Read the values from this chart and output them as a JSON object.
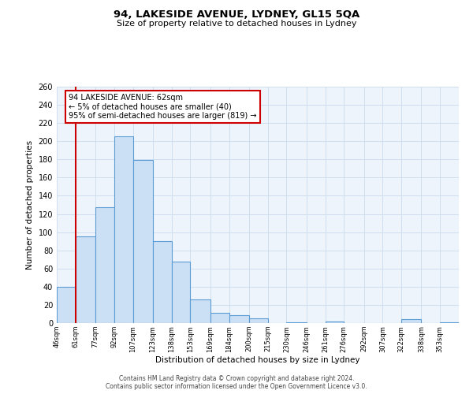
{
  "title": "94, LAKESIDE AVENUE, LYDNEY, GL15 5QA",
  "subtitle": "Size of property relative to detached houses in Lydney",
  "xlabel": "Distribution of detached houses by size in Lydney",
  "ylabel": "Number of detached properties",
  "bin_labels": [
    "46sqm",
    "61sqm",
    "77sqm",
    "92sqm",
    "107sqm",
    "123sqm",
    "138sqm",
    "153sqm",
    "169sqm",
    "184sqm",
    "200sqm",
    "215sqm",
    "230sqm",
    "246sqm",
    "261sqm",
    "276sqm",
    "292sqm",
    "307sqm",
    "322sqm",
    "338sqm",
    "353sqm"
  ],
  "bin_edges": [
    46,
    61,
    77,
    92,
    107,
    123,
    138,
    153,
    169,
    184,
    200,
    215,
    230,
    246,
    261,
    276,
    292,
    307,
    322,
    338,
    353
  ],
  "bar_heights": [
    40,
    95,
    127,
    205,
    179,
    90,
    68,
    26,
    11,
    9,
    5,
    0,
    1,
    0,
    2,
    0,
    0,
    0,
    4,
    0,
    1
  ],
  "bar_face_color": "#cce0f5",
  "bar_edge_color": "#5b9bd5",
  "grid_color": "#d0dff0",
  "background_color": "#eef4fb",
  "property_line_x": 61,
  "annotation_title": "94 LAKESIDE AVENUE: 62sqm",
  "annotation_line1": "← 5% of detached houses are smaller (40)",
  "annotation_line2": "95% of semi-detached houses are larger (819) →",
  "annotation_box_edge": "#cc0000",
  "annotation_line_color": "#cc0000",
  "ylim": [
    0,
    260
  ],
  "yticks": [
    0,
    20,
    40,
    60,
    80,
    100,
    120,
    140,
    160,
    180,
    200,
    220,
    240,
    260
  ],
  "footnote1": "Contains HM Land Registry data © Crown copyright and database right 2024.",
  "footnote2": "Contains public sector information licensed under the Open Government Licence v3.0."
}
